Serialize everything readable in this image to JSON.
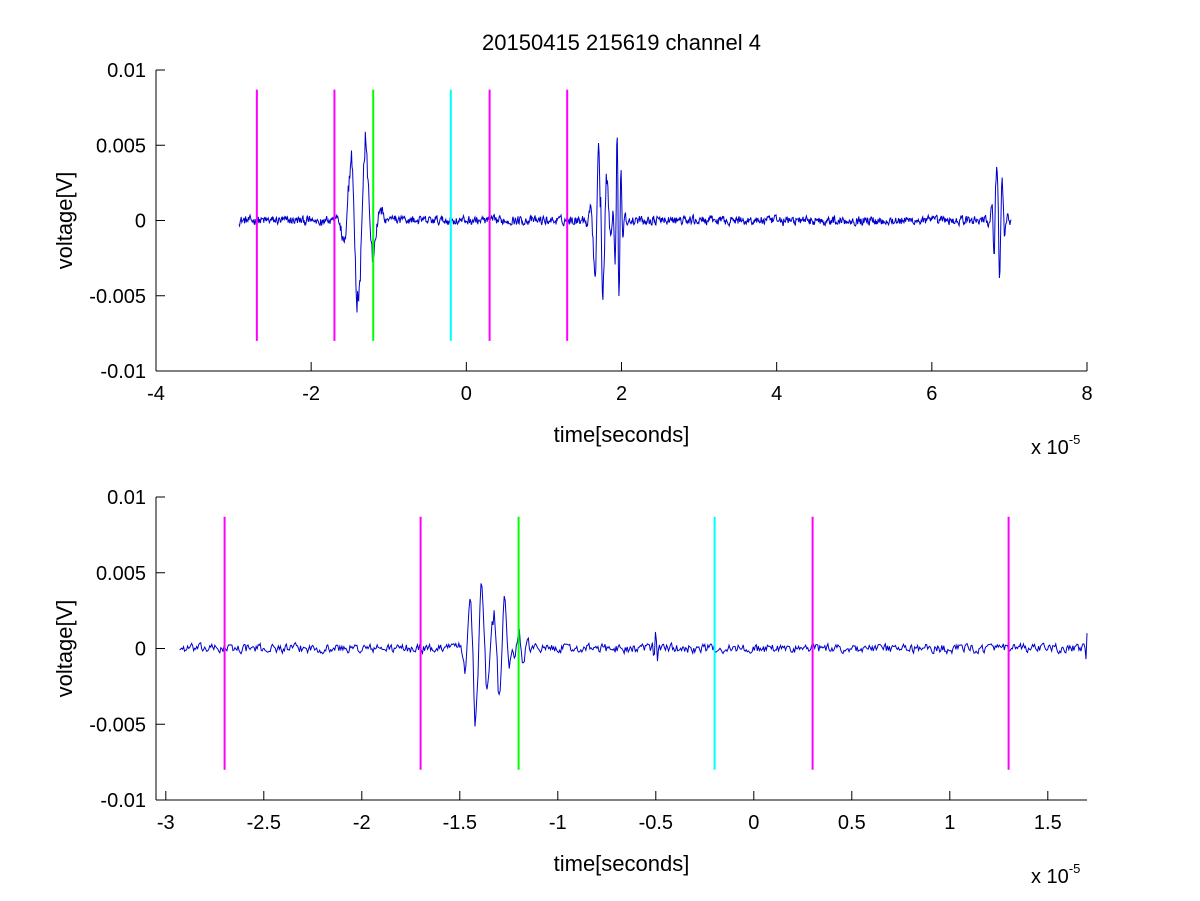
{
  "chart_data": [
    {
      "type": "line",
      "title": "20150415 215619 channel 4",
      "xlabel": "time[seconds]",
      "ylabel": "voltage[V]",
      "x_multiplier_label": {
        "base": "x 10",
        "exponent": "-5"
      },
      "xlim": [
        -4,
        8
      ],
      "ylim": [
        -0.01,
        0.01
      ],
      "x_ticks": [
        -4,
        -2,
        0,
        2,
        4,
        6,
        8
      ],
      "x_tick_labels": [
        "-4",
        "-2",
        "0",
        "2",
        "4",
        "6",
        "8"
      ],
      "y_ticks": [
        -0.01,
        -0.005,
        0,
        0.005,
        0.01
      ],
      "y_tick_labels": [
        "-0.01",
        "-0.005",
        "0",
        "0.005",
        "0.01"
      ],
      "grid": false,
      "signal": {
        "color": "#0000cc",
        "x_range": [
          -2.93,
          7.02
        ],
        "baseline_noise": 0.0003,
        "bursts": [
          {
            "t": -1.4,
            "amp": -0.0062,
            "width": 0.2
          },
          {
            "t": -1.28,
            "amp": 0.0025,
            "width": 0.2
          },
          {
            "t": 1.72,
            "amp": 0.0078,
            "width": 0.12
          },
          {
            "t": 1.74,
            "amp": -0.0062,
            "width": 0.12
          },
          {
            "t": 1.95,
            "amp": 0.0065,
            "width": 0.06
          },
          {
            "t": 1.96,
            "amp": -0.0068,
            "width": 0.06
          },
          {
            "t": 6.85,
            "amp": 0.0078,
            "width": 0.08
          },
          {
            "t": 6.86,
            "amp": -0.0072,
            "width": 0.08
          }
        ]
      },
      "markers": [
        {
          "x": -2.7,
          "color": "#ff00ff",
          "y_range": [
            -0.008,
            0.0087
          ]
        },
        {
          "x": -1.7,
          "color": "#ff00ff",
          "y_range": [
            -0.008,
            0.0087
          ]
        },
        {
          "x": -1.2,
          "color": "#00ff00",
          "y_range": [
            -0.008,
            0.0087
          ]
        },
        {
          "x": -0.2,
          "color": "#00ffff",
          "y_range": [
            -0.008,
            0.0087
          ]
        },
        {
          "x": 0.3,
          "color": "#ff00ff",
          "y_range": [
            -0.008,
            0.0087
          ]
        },
        {
          "x": 1.3,
          "color": "#ff00ff",
          "y_range": [
            -0.008,
            0.0087
          ]
        }
      ]
    },
    {
      "type": "line",
      "title": "",
      "xlabel": "time[seconds]",
      "ylabel": "voltage[V]",
      "x_multiplier_label": {
        "base": "x 10",
        "exponent": "-5"
      },
      "xlim": [
        -3.05,
        1.7
      ],
      "ylim": [
        -0.01,
        0.01
      ],
      "x_ticks": [
        -3,
        -2.5,
        -2,
        -1.5,
        -1,
        -0.5,
        0,
        0.5,
        1,
        1.5
      ],
      "x_tick_labels": [
        "-3",
        "-2.5",
        "-2",
        "-1.5",
        "-1",
        "-0.5",
        "0",
        "0.5",
        "1",
        "1.5"
      ],
      "y_ticks": [
        -0.01,
        -0.005,
        0,
        0.005,
        0.01
      ],
      "y_tick_labels": [
        "-0.01",
        "-0.005",
        "0",
        "0.005",
        "0.01"
      ],
      "grid": false,
      "signal": {
        "color": "#0000cc",
        "x_range": [
          -2.93,
          1.7
        ],
        "baseline_noise": 0.0003,
        "bursts": [
          {
            "t": -1.42,
            "amp": -0.0062,
            "width": 0.06
          },
          {
            "t": -1.38,
            "amp": 0.002,
            "width": 0.05
          },
          {
            "t": -1.3,
            "amp": -0.003,
            "width": 0.06
          },
          {
            "t": -1.27,
            "amp": 0.002,
            "width": 0.05
          },
          {
            "t": -1.2,
            "amp": 0.0018,
            "width": 0.05
          },
          {
            "t": -0.5,
            "amp": 0.0012,
            "width": 0.02
          },
          {
            "t": 1.7,
            "amp": 0.0012,
            "width": 0.01
          }
        ]
      },
      "markers": [
        {
          "x": -2.7,
          "color": "#ff00ff",
          "y_range": [
            -0.008,
            0.0087
          ]
        },
        {
          "x": -1.7,
          "color": "#ff00ff",
          "y_range": [
            -0.008,
            0.0087
          ]
        },
        {
          "x": -1.2,
          "color": "#00ff00",
          "y_range": [
            -0.008,
            0.0087
          ]
        },
        {
          "x": -0.2,
          "color": "#00ffff",
          "y_range": [
            -0.008,
            0.0087
          ]
        },
        {
          "x": 0.3,
          "color": "#ff00ff",
          "y_range": [
            -0.008,
            0.0087
          ]
        },
        {
          "x": 1.3,
          "color": "#ff00ff",
          "y_range": [
            -0.008,
            0.0087
          ]
        }
      ]
    }
  ]
}
